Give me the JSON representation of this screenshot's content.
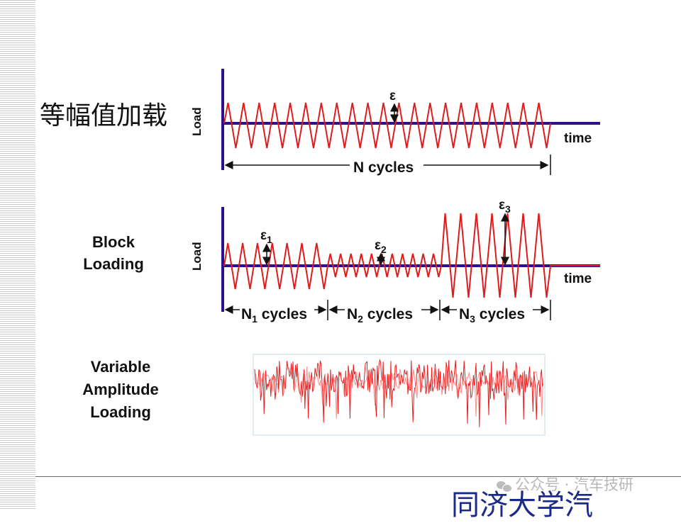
{
  "rows": {
    "constant": {
      "label": "等幅值加载",
      "y_axis": "Load",
      "x_axis": "time",
      "amplitude_symbol": "ε",
      "cycles_label": "N cycles"
    },
    "block": {
      "label_line1": "Block",
      "label_line2": "Loading",
      "y_axis": "Load",
      "x_axis": "time",
      "amplitudes": [
        {
          "symbol": "ε",
          "sub": "1"
        },
        {
          "symbol": "ε",
          "sub": "2"
        },
        {
          "symbol": "ε",
          "sub": "3"
        }
      ],
      "segments": [
        {
          "prefix": "N",
          "sub": "1",
          "suffix": " cycles"
        },
        {
          "prefix": "N",
          "sub": "2",
          "suffix": " cycles"
        },
        {
          "prefix": "N",
          "sub": "3",
          "suffix": " cycles"
        }
      ]
    },
    "variable": {
      "label_line1": "Variable",
      "label_line2": "Amplitude",
      "label_line3": "Loading"
    }
  },
  "watermark": "公众号 · 汽车技研",
  "footer": "同济大学汽",
  "colors": {
    "axis": "#2e0f8f",
    "wave": "#e01b1b",
    "arrow": "#111111"
  }
}
